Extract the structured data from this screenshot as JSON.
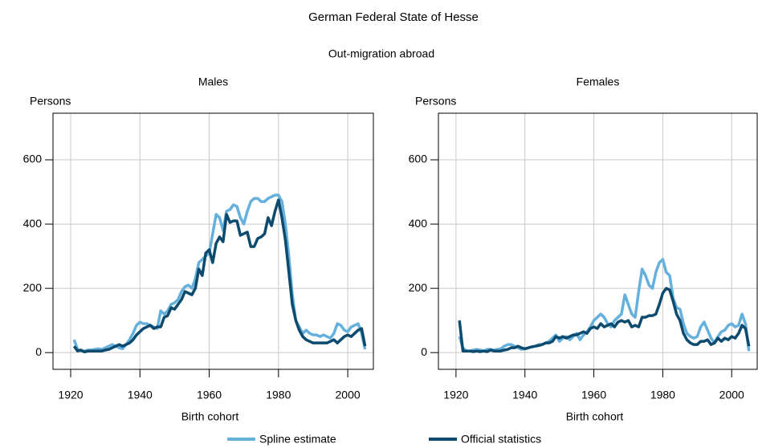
{
  "title": "German Federal State of Hesse",
  "subtitle": "Out-migration abroad",
  "chart_data": [
    {
      "type": "line",
      "title": "Males",
      "y_label": "Persons",
      "x_label": "Birth cohort",
      "x": [
        1921,
        1922,
        1923,
        1924,
        1925,
        1926,
        1927,
        1928,
        1929,
        1930,
        1931,
        1932,
        1933,
        1934,
        1935,
        1936,
        1937,
        1938,
        1939,
        1940,
        1941,
        1942,
        1943,
        1944,
        1945,
        1946,
        1947,
        1948,
        1949,
        1950,
        1951,
        1952,
        1953,
        1954,
        1955,
        1956,
        1957,
        1958,
        1959,
        1960,
        1961,
        1962,
        1963,
        1964,
        1965,
        1966,
        1967,
        1968,
        1969,
        1970,
        1971,
        1972,
        1973,
        1974,
        1975,
        1976,
        1977,
        1978,
        1979,
        1980,
        1981,
        1982,
        1983,
        1984,
        1985,
        1986,
        1987,
        1988,
        1989,
        1990,
        1991,
        1992,
        1993,
        1994,
        1995,
        1996,
        1997,
        1998,
        1999,
        2000,
        2001,
        2002,
        2003,
        2004,
        2005
      ],
      "series": [
        {
          "name": "Spline estimate",
          "color": "#66b0dc",
          "values": [
            40,
            10,
            5,
            5,
            8,
            8,
            10,
            12,
            10,
            15,
            20,
            25,
            20,
            15,
            12,
            25,
            40,
            60,
            85,
            95,
            90,
            90,
            85,
            80,
            75,
            130,
            120,
            130,
            150,
            155,
            165,
            190,
            205,
            210,
            200,
            230,
            280,
            290,
            300,
            310,
            370,
            430,
            420,
            380,
            440,
            445,
            460,
            455,
            420,
            400,
            440,
            470,
            480,
            480,
            470,
            470,
            480,
            485,
            490,
            490,
            470,
            400,
            300,
            180,
            100,
            80,
            60,
            70,
            60,
            55,
            55,
            50,
            55,
            50,
            45,
            60,
            90,
            85,
            70,
            65,
            80,
            85,
            90,
            60,
            10
          ]
        },
        {
          "name": "Official statistics",
          "color": "#0c4a6e",
          "values": [
            20,
            5,
            8,
            2,
            5,
            5,
            5,
            5,
            5,
            8,
            10,
            15,
            20,
            25,
            20,
            25,
            30,
            40,
            55,
            65,
            75,
            80,
            85,
            75,
            80,
            80,
            110,
            115,
            140,
            135,
            150,
            165,
            190,
            185,
            180,
            200,
            260,
            240,
            310,
            320,
            280,
            340,
            360,
            345,
            430,
            405,
            410,
            410,
            365,
            370,
            375,
            330,
            330,
            355,
            360,
            370,
            420,
            395,
            440,
            475,
            420,
            350,
            250,
            150,
            100,
            70,
            50,
            40,
            35,
            30,
            30,
            30,
            30,
            30,
            35,
            40,
            30,
            40,
            50,
            55,
            50,
            60,
            70,
            75,
            20
          ]
        }
      ],
      "xlim": [
        1914.9,
        2007.4
      ],
      "ylim": [
        -52,
        745
      ],
      "xticks": [
        1920,
        1940,
        1960,
        1980,
        2000
      ],
      "yticks": [
        0,
        200,
        400,
        600
      ],
      "grid": true
    },
    {
      "type": "line",
      "title": "Females",
      "y_label": "Persons",
      "x_label": "Birth cohort",
      "x": [
        1921,
        1922,
        1923,
        1924,
        1925,
        1926,
        1927,
        1928,
        1929,
        1930,
        1931,
        1932,
        1933,
        1934,
        1935,
        1936,
        1937,
        1938,
        1939,
        1940,
        1941,
        1942,
        1943,
        1944,
        1945,
        1946,
        1947,
        1948,
        1949,
        1950,
        1951,
        1952,
        1953,
        1954,
        1955,
        1956,
        1957,
        1958,
        1959,
        1960,
        1961,
        1962,
        1963,
        1964,
        1965,
        1966,
        1967,
        1968,
        1969,
        1970,
        1971,
        1972,
        1973,
        1974,
        1975,
        1976,
        1977,
        1978,
        1979,
        1980,
        1981,
        1982,
        1983,
        1984,
        1985,
        1986,
        1987,
        1988,
        1989,
        1990,
        1991,
        1992,
        1993,
        1994,
        1995,
        1996,
        1997,
        1998,
        1999,
        2000,
        2001,
        2002,
        2003,
        2004,
        2005
      ],
      "series": [
        {
          "name": "Spline estimate",
          "color": "#66b0dc",
          "values": [
            50,
            15,
            5,
            5,
            8,
            10,
            8,
            5,
            10,
            10,
            8,
            10,
            12,
            20,
            25,
            25,
            20,
            15,
            10,
            12,
            15,
            18,
            20,
            25,
            25,
            30,
            35,
            45,
            55,
            35,
            45,
            50,
            40,
            50,
            60,
            40,
            55,
            65,
            80,
            100,
            110,
            120,
            110,
            90,
            80,
            100,
            110,
            120,
            180,
            150,
            120,
            110,
            190,
            260,
            240,
            210,
            200,
            250,
            280,
            290,
            250,
            240,
            170,
            140,
            135,
            90,
            60,
            50,
            45,
            50,
            80,
            95,
            70,
            45,
            30,
            50,
            65,
            70,
            85,
            90,
            80,
            85,
            120,
            90,
            5
          ]
        },
        {
          "name": "Official statistics",
          "color": "#0c4a6e",
          "values": [
            100,
            5,
            5,
            5,
            3,
            5,
            3,
            5,
            3,
            8,
            5,
            5,
            5,
            8,
            10,
            15,
            15,
            20,
            15,
            12,
            15,
            18,
            20,
            22,
            25,
            30,
            30,
            35,
            50,
            45,
            50,
            45,
            50,
            55,
            55,
            60,
            65,
            60,
            75,
            80,
            75,
            90,
            80,
            85,
            90,
            80,
            95,
            100,
            95,
            100,
            80,
            85,
            80,
            110,
            110,
            115,
            115,
            120,
            150,
            185,
            200,
            195,
            160,
            120,
            100,
            60,
            40,
            30,
            25,
            25,
            35,
            35,
            40,
            25,
            30,
            45,
            35,
            45,
            40,
            50,
            45,
            60,
            85,
            75,
            20
          ]
        }
      ],
      "xlim": [
        1914.9,
        2007.4
      ],
      "ylim": [
        -52,
        745
      ],
      "xticks": [
        1920,
        1940,
        1960,
        1980,
        2000
      ],
      "yticks": [
        0,
        200,
        400,
        600
      ],
      "grid": true
    }
  ]
}
